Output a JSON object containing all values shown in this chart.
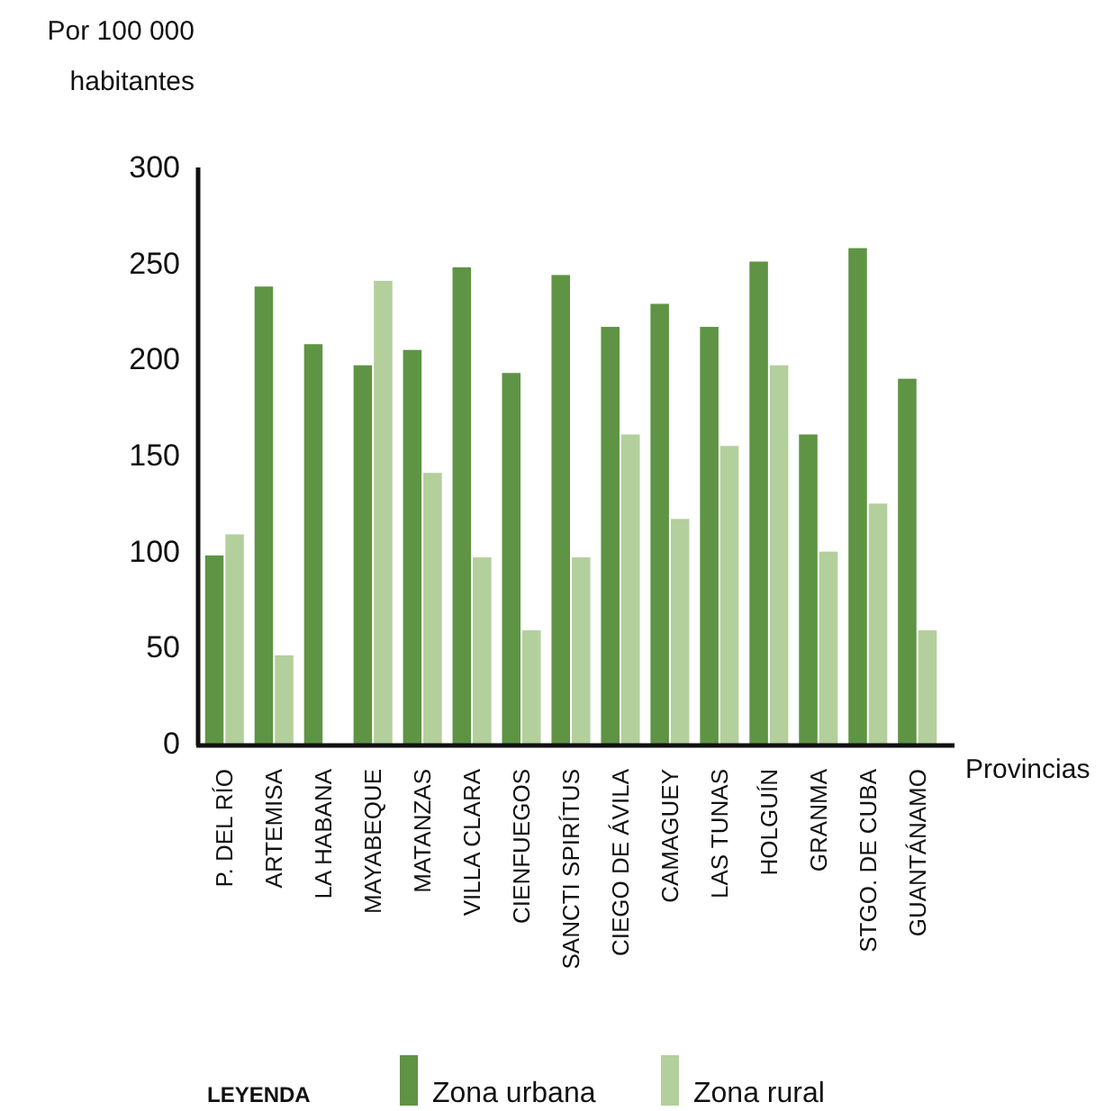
{
  "chart_data": {
    "type": "bar",
    "ylabel": "Por 100 000 habitantes",
    "xlabel": "Provincias",
    "legend_title": "LEYENDA",
    "legend": "bottom",
    "grid": false,
    "categories": [
      "P. DEL RÍO",
      "ARTEMISA",
      "LA HABANA",
      "MAYABEQUE",
      "MATANZAS",
      "VILLA CLARA",
      "CIENFUEGOS",
      "SANCTI SPIRÍTUS",
      "CIEGO DE ÁVILA",
      "CAMAGUEY",
      "LAS TUNAS",
      "HOLGUÍN",
      "GRANMA",
      "STGO. DE CUBA",
      "GUANTÁNAMO"
    ],
    "series": [
      {
        "name": "Zona urbana",
        "color": "#5e9444",
        "values": [
          98,
          238,
          208,
          197,
          205,
          248,
          193,
          244,
          217,
          229,
          217,
          251,
          161,
          258,
          190
        ]
      },
      {
        "name": "Zona rural",
        "color": "#b3cf9c",
        "values": [
          109,
          46,
          0,
          241,
          141,
          97,
          59,
          97,
          161,
          117,
          155,
          197,
          100,
          125,
          59
        ]
      }
    ],
    "ylim": [
      0,
      300
    ],
    "yticks": [
      0,
      50,
      100,
      150,
      200,
      250,
      300
    ]
  }
}
